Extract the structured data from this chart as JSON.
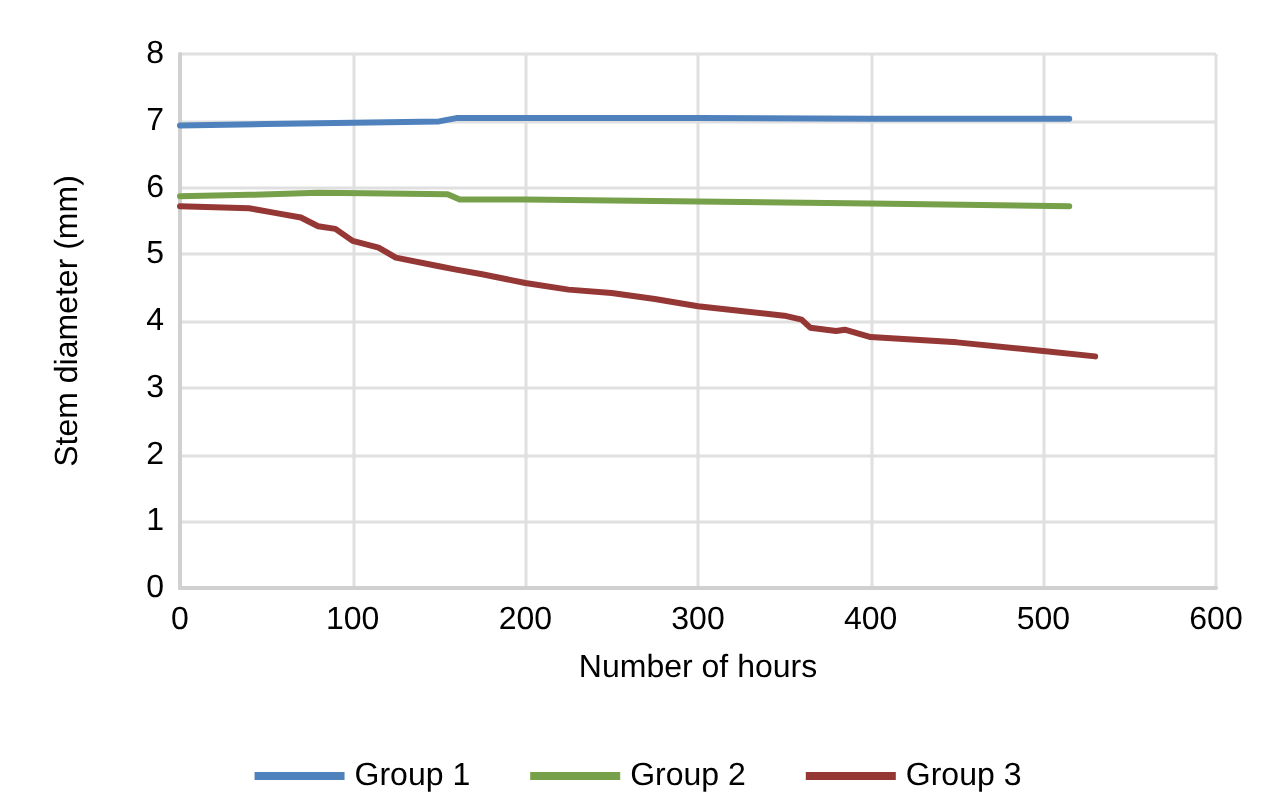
{
  "chart_data": {
    "type": "line",
    "xlabel": "Number of hours",
    "ylabel": "Stem diameter (mm)",
    "xlim": [
      0,
      600
    ],
    "xticks": [
      0,
      100,
      200,
      300,
      400,
      500,
      600
    ],
    "ylim": [
      0,
      8
    ],
    "yticks": [
      0,
      1,
      2,
      3,
      4,
      5,
      6,
      7,
      8
    ],
    "grid": true,
    "legend": "bottom",
    "marker": "none",
    "line_style": "solid",
    "series": [
      {
        "name": "Group 1",
        "color": "#4f81bd",
        "x": [
          0,
          50,
          100,
          150,
          160,
          200,
          300,
          400,
          515
        ],
        "values": [
          6.93,
          6.95,
          6.97,
          6.99,
          7.04,
          7.04,
          7.04,
          7.03,
          7.03
        ]
      },
      {
        "name": "Group 2",
        "color": "#77a04a",
        "x": [
          0,
          40,
          80,
          120,
          155,
          162,
          200,
          300,
          400,
          515
        ],
        "values": [
          5.87,
          5.89,
          5.92,
          5.91,
          5.9,
          5.82,
          5.82,
          5.79,
          5.76,
          5.72
        ]
      },
      {
        "name": "Group 3",
        "color": "#953735",
        "x": [
          0,
          40,
          55,
          70,
          80,
          90,
          100,
          115,
          125,
          150,
          160,
          175,
          200,
          225,
          250,
          275,
          300,
          325,
          350,
          360,
          365,
          380,
          385,
          400,
          450,
          500,
          530
        ],
        "values": [
          5.72,
          5.69,
          5.62,
          5.55,
          5.42,
          5.38,
          5.2,
          5.1,
          4.95,
          4.82,
          4.77,
          4.7,
          4.57,
          4.47,
          4.42,
          4.33,
          4.22,
          4.15,
          4.08,
          4.02,
          3.9,
          3.85,
          3.87,
          3.76,
          3.68,
          3.55,
          3.47
        ]
      }
    ]
  }
}
